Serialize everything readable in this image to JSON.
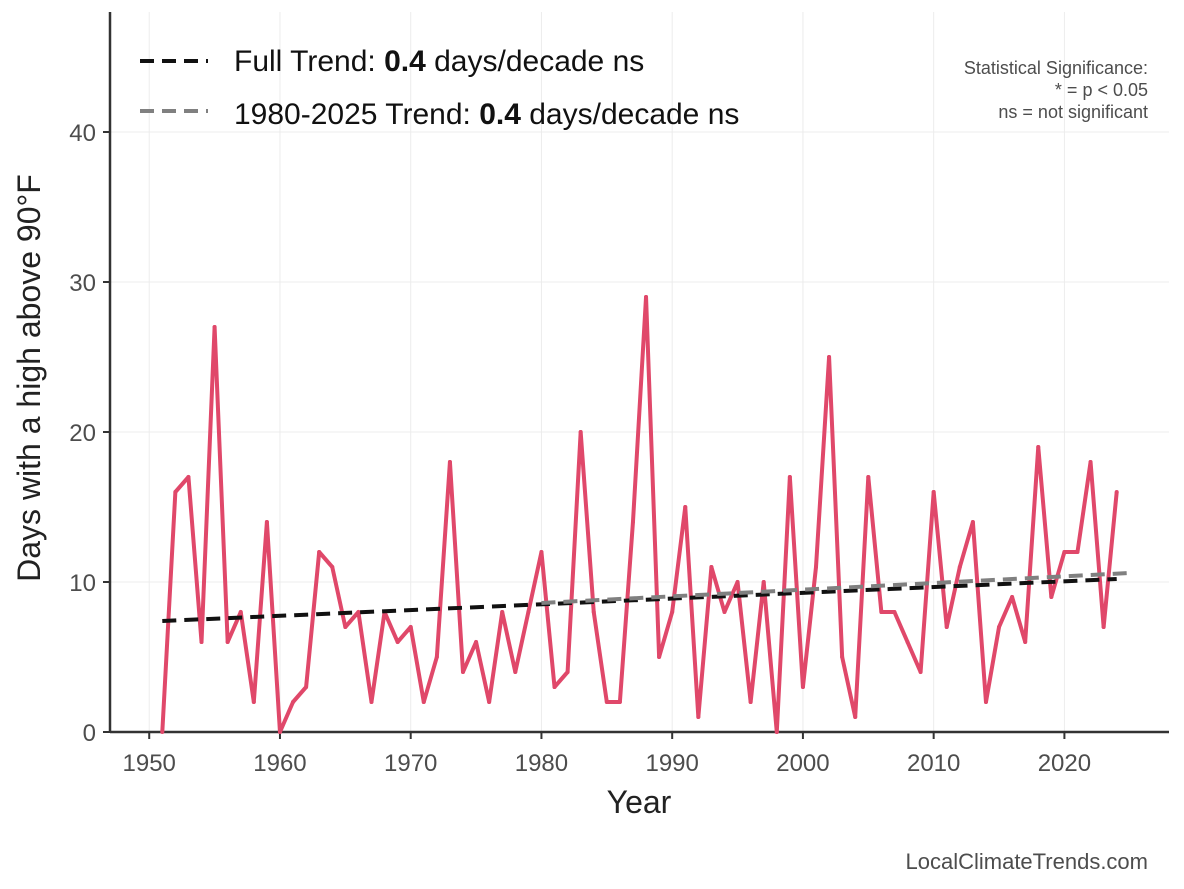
{
  "chart_data": {
    "type": "line",
    "xlabel": "Year",
    "ylabel": "Days with a high above 90°F",
    "xlim": [
      1947,
      2028
    ],
    "ylim": [
      0,
      48
    ],
    "x_ticks": [
      1950,
      1960,
      1970,
      1980,
      1990,
      2000,
      2010,
      2020
    ],
    "y_ticks": [
      0,
      10,
      20,
      30,
      40
    ],
    "grid": true,
    "series": [
      {
        "color": "#e0486a",
        "x": [
          1951,
          1952,
          1953,
          1954,
          1955,
          1956,
          1957,
          1958,
          1959,
          1960,
          1961,
          1962,
          1963,
          1964,
          1965,
          1966,
          1967,
          1968,
          1969,
          1970,
          1971,
          1972,
          1973,
          1974,
          1975,
          1976,
          1977,
          1978,
          1979,
          1980,
          1981,
          1982,
          1983,
          1984,
          1985,
          1986,
          1987,
          1988,
          1989,
          1990,
          1991,
          1992,
          1993,
          1994,
          1995,
          1996,
          1997,
          1998,
          1999,
          2000,
          2001,
          2002,
          2003,
          2004,
          2005,
          2006,
          2007,
          2008,
          2009,
          2010,
          2011,
          2012,
          2013,
          2014,
          2015,
          2016,
          2017,
          2018,
          2019,
          2020,
          2021,
          2022,
          2023,
          2024
        ],
        "values": [
          0,
          16,
          17,
          6,
          27,
          6,
          8,
          2,
          14,
          0,
          2,
          3,
          12,
          11,
          7,
          8,
          2,
          8,
          6,
          7,
          2,
          5,
          18,
          4,
          6,
          2,
          8,
          4,
          8,
          12,
          3,
          4,
          20,
          8,
          2,
          2,
          14,
          29,
          5,
          8,
          15,
          1,
          11,
          8,
          10,
          2,
          10,
          0,
          17,
          3,
          11,
          25,
          5,
          1,
          17,
          8,
          8,
          6,
          4,
          16,
          7,
          11,
          14,
          2,
          7,
          9,
          6,
          19,
          9,
          12,
          12,
          18,
          7,
          16
        ]
      }
    ],
    "trends": [
      {
        "name_prefix": "Full Trend: ",
        "rate": "0.4",
        "suffix": " days/decade ns",
        "color": "#111111",
        "x": [
          1951,
          2024
        ],
        "y": [
          7.4,
          10.2
        ]
      },
      {
        "name_prefix": "1980-2025 Trend: ",
        "rate": "0.4",
        "suffix": " days/decade ns",
        "color": "#808080",
        "x": [
          1980,
          2025
        ],
        "y": [
          8.6,
          10.6
        ]
      }
    ],
    "legend_position": "top-left",
    "annotation": {
      "line1": "Statistical Significance:",
      "line2": "* = p < 0.05",
      "line3": "ns = not significant"
    },
    "credit": "LocalClimateTrends.com"
  }
}
